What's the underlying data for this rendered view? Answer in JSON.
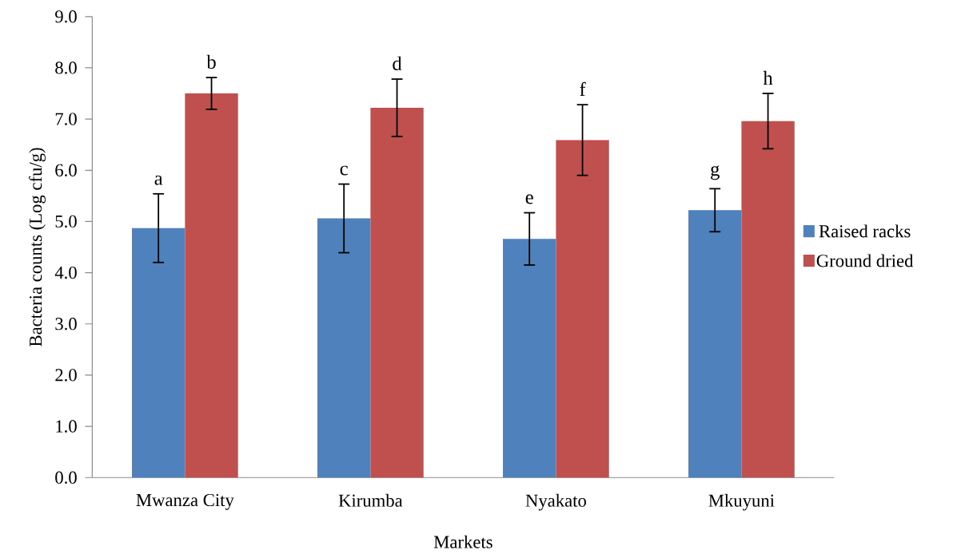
{
  "chart_data": {
    "type": "bar",
    "xlabel": "Markets",
    "ylabel": "Bacteria counts (Log cfu/g)",
    "categories": [
      "Mwanza City",
      "Kirumba",
      "Nyakato",
      "Mkuyuni"
    ],
    "series": [
      {
        "name": "Raised racks",
        "color": "#4f81bd",
        "values": [
          4.87,
          5.06,
          4.66,
          5.22
        ],
        "errors": [
          0.67,
          0.67,
          0.51,
          0.42
        ],
        "value_labels": [
          "a",
          "c",
          "e",
          "g"
        ]
      },
      {
        "name": "Ground dried",
        "color": "#c0504d",
        "values": [
          7.5,
          7.22,
          6.59,
          6.96
        ],
        "errors": [
          0.31,
          0.56,
          0.69,
          0.54
        ],
        "value_labels": [
          "b",
          "d",
          "f",
          "h"
        ]
      }
    ],
    "ylim": [
      0,
      9
    ],
    "yticks": [
      {
        "value": 0,
        "label": "0.0"
      },
      {
        "value": 1,
        "label": "1.0"
      },
      {
        "value": 2,
        "label": "2.0"
      },
      {
        "value": 3,
        "label": "3.0"
      },
      {
        "value": 4,
        "label": "4.0"
      },
      {
        "value": 5,
        "label": "5.0"
      },
      {
        "value": 6,
        "label": "6.0"
      },
      {
        "value": 7,
        "label": "7.0"
      },
      {
        "value": 8,
        "label": "8.0"
      },
      {
        "value": 9,
        "label": "9.0"
      }
    ],
    "legend": "right",
    "grid": false
  }
}
